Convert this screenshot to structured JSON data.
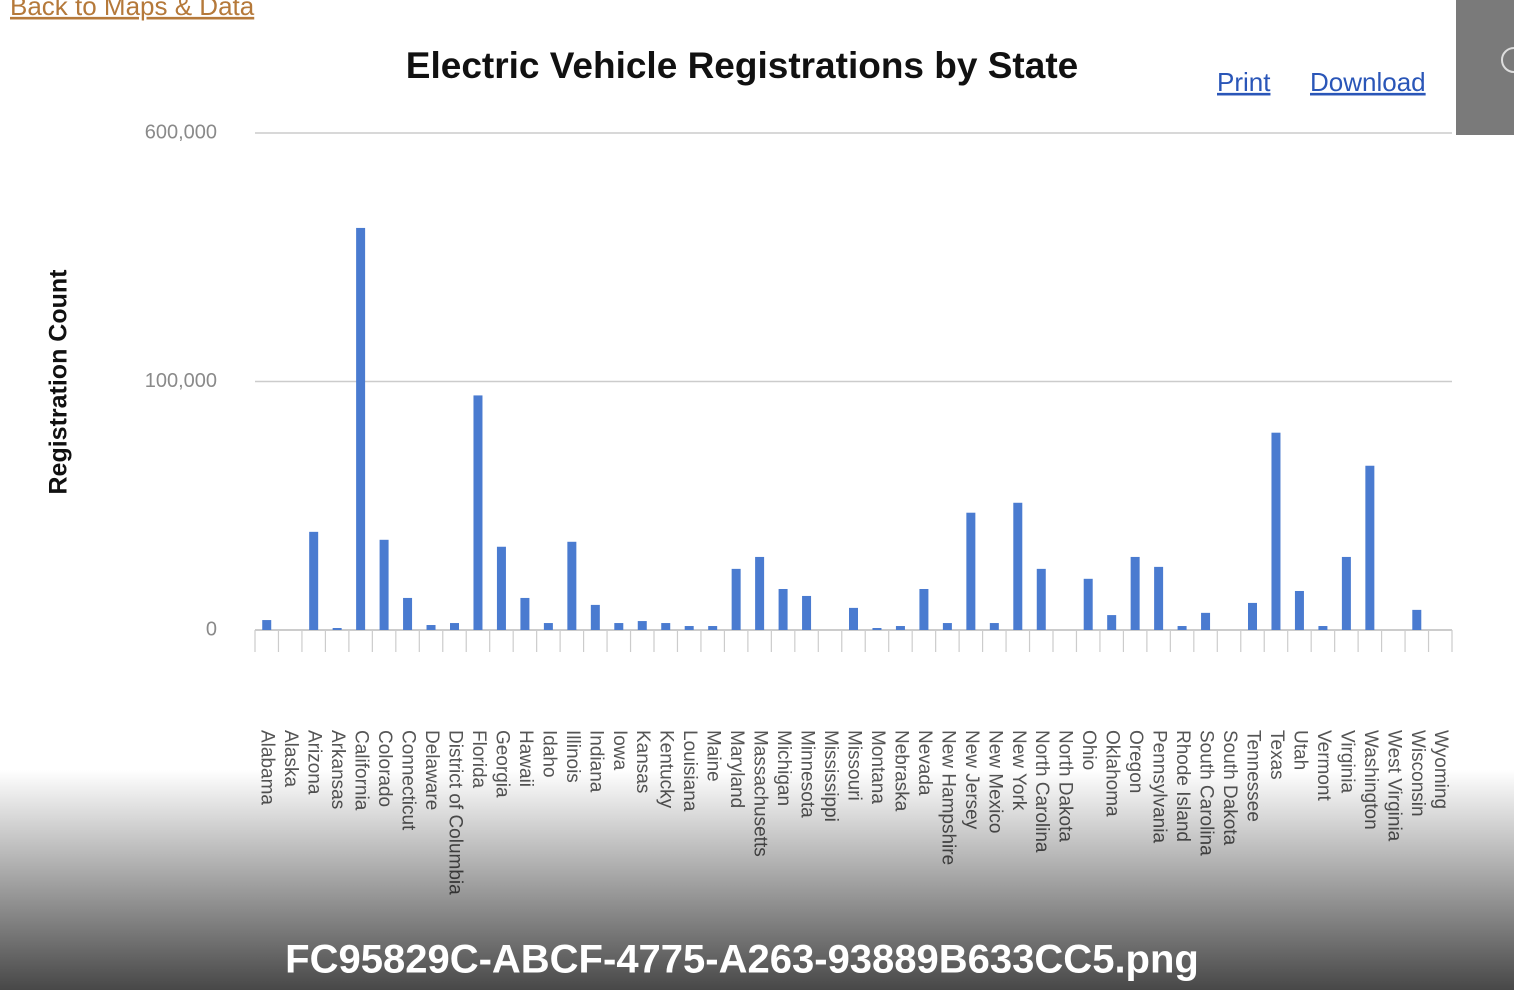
{
  "back_link": "Back to Maps & Data",
  "toolbar": {
    "print": "Print",
    "download": "Download"
  },
  "caption": "FC95829C-ABCF-4775-A263-93889B633CC5.png",
  "chart_data": {
    "type": "bar",
    "title": "Electric Vehicle Registrations by State",
    "y_label": "Registration Count",
    "yscale": "piecewise",
    "color": "#4a7bd0",
    "grid": true,
    "ylim": [
      0,
      600000
    ],
    "yticks": [
      0,
      {
        "value": 100000,
        "label": "100,000"
      },
      {
        "value": 600000,
        "label": "600,000"
      }
    ],
    "categories": [
      "Alabama",
      "Alaska",
      "Arizona",
      "Arkansas",
      "California",
      "Colorado",
      "Connecticut",
      "Delaware",
      "District of Columbia",
      "Florida",
      "Georgia",
      "Hawaii",
      "Idaho",
      "Illinois",
      "Indiana",
      "Iowa",
      "Kansas",
      "Kentucky",
      "Louisiana",
      "Maine",
      "Maryland",
      "Massachusetts",
      "Michigan",
      "Minnesota",
      "Mississippi",
      "Missouri",
      "Montana",
      "Nebraska",
      "Nevada",
      "New Hampshire",
      "New Jersey",
      "New Mexico",
      "New York",
      "North Carolina",
      "North Dakota",
      "Ohio",
      "Oklahoma",
      "Oregon",
      "Pennsylvania",
      "Rhode Island",
      "South Carolina",
      "South Dakota",
      "Tennessee",
      "Texas",
      "Utah",
      "Vermont",
      "Virginia",
      "Washington",
      "West Virginia",
      "Wisconsin",
      "Wyoming"
    ],
    "values": [
      4000,
      0,
      39500,
      800,
      409000,
      36300,
      12900,
      2000,
      2800,
      94400,
      33500,
      12900,
      2800,
      35500,
      10100,
      2800,
      3600,
      2800,
      1600,
      1600,
      24600,
      29400,
      16500,
      13700,
      0,
      8900,
      800,
      1600,
      16500,
      2800,
      47200,
      2800,
      51200,
      24600,
      0,
      20600,
      6000,
      29400,
      25400,
      1600,
      6900,
      0,
      10900,
      79400,
      15700,
      1600,
      29400,
      66100,
      0,
      8100,
      0
    ]
  }
}
